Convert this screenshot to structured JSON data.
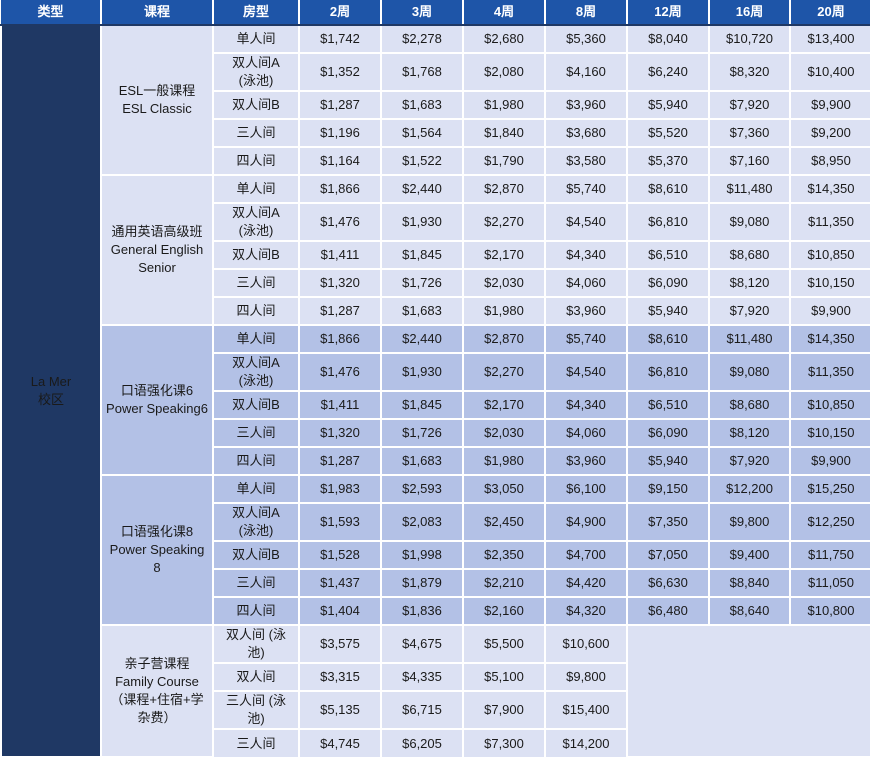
{
  "colors": {
    "header_bg": "#1e55a8",
    "header_text": "#ffffff",
    "header_divider": "#1f3864",
    "campus_bg": "#1f3864",
    "row_light": "#dce1f3",
    "row_dark": "#b3c1e6",
    "grid": "#ffffff",
    "cell_text": "#1a1a1a"
  },
  "table": {
    "headers": [
      "类型",
      "课程",
      "房型",
      "2周",
      "3周",
      "4周",
      "8周",
      "12周",
      "16周",
      "20周"
    ],
    "campus": "La Mer\n校区",
    "blocks": [
      {
        "course": "ESL一般课程\nESL Classic",
        "shade": "light",
        "rows": [
          {
            "room": "单人间",
            "prices": [
              "$1,742",
              "$2,278",
              "$2,680",
              "$5,360",
              "$8,040",
              "$10,720",
              "$13,400"
            ]
          },
          {
            "room": "双人间A\n(泳池)",
            "prices": [
              "$1,352",
              "$1,768",
              "$2,080",
              "$4,160",
              "$6,240",
              "$8,320",
              "$10,400"
            ]
          },
          {
            "room": "双人间B",
            "prices": [
              "$1,287",
              "$1,683",
              "$1,980",
              "$3,960",
              "$5,940",
              "$7,920",
              "$9,900"
            ]
          },
          {
            "room": "三人间",
            "prices": [
              "$1,196",
              "$1,564",
              "$1,840",
              "$3,680",
              "$5,520",
              "$7,360",
              "$9,200"
            ]
          },
          {
            "room": "四人间",
            "prices": [
              "$1,164",
              "$1,522",
              "$1,790",
              "$3,580",
              "$5,370",
              "$7,160",
              "$8,950"
            ]
          }
        ]
      },
      {
        "course": "通用英语高级班\nGeneral English\nSenior",
        "shade": "light",
        "rows": [
          {
            "room": "单人间",
            "prices": [
              "$1,866",
              "$2,440",
              "$2,870",
              "$5,740",
              "$8,610",
              "$11,480",
              "$14,350"
            ]
          },
          {
            "room": "双人间A\n(泳池)",
            "prices": [
              "$1,476",
              "$1,930",
              "$2,270",
              "$4,540",
              "$6,810",
              "$9,080",
              "$11,350"
            ]
          },
          {
            "room": "双人间B",
            "prices": [
              "$1,411",
              "$1,845",
              "$2,170",
              "$4,340",
              "$6,510",
              "$8,680",
              "$10,850"
            ]
          },
          {
            "room": "三人间",
            "prices": [
              "$1,320",
              "$1,726",
              "$2,030",
              "$4,060",
              "$6,090",
              "$8,120",
              "$10,150"
            ]
          },
          {
            "room": "四人间",
            "prices": [
              "$1,287",
              "$1,683",
              "$1,980",
              "$3,960",
              "$5,940",
              "$7,920",
              "$9,900"
            ]
          }
        ]
      },
      {
        "course": "口语强化课6\nPower Speaking6",
        "shade": "dark",
        "rows": [
          {
            "room": "单人间",
            "prices": [
              "$1,866",
              "$2,440",
              "$2,870",
              "$5,740",
              "$8,610",
              "$11,480",
              "$14,350"
            ]
          },
          {
            "room": "双人间A\n(泳池)",
            "prices": [
              "$1,476",
              "$1,930",
              "$2,270",
              "$4,540",
              "$6,810",
              "$9,080",
              "$11,350"
            ]
          },
          {
            "room": "双人间B",
            "prices": [
              "$1,411",
              "$1,845",
              "$2,170",
              "$4,340",
              "$6,510",
              "$8,680",
              "$10,850"
            ]
          },
          {
            "room": "三人间",
            "prices": [
              "$1,320",
              "$1,726",
              "$2,030",
              "$4,060",
              "$6,090",
              "$8,120",
              "$10,150"
            ]
          },
          {
            "room": "四人间",
            "prices": [
              "$1,287",
              "$1,683",
              "$1,980",
              "$3,960",
              "$5,940",
              "$7,920",
              "$9,900"
            ]
          }
        ]
      },
      {
        "course": "口语强化课8\nPower Speaking 8",
        "shade": "dark",
        "rows": [
          {
            "room": "单人间",
            "prices": [
              "$1,983",
              "$2,593",
              "$3,050",
              "$6,100",
              "$9,150",
              "$12,200",
              "$15,250"
            ]
          },
          {
            "room": "双人间A\n(泳池)",
            "prices": [
              "$1,593",
              "$2,083",
              "$2,450",
              "$4,900",
              "$7,350",
              "$9,800",
              "$12,250"
            ]
          },
          {
            "room": "双人间B",
            "prices": [
              "$1,528",
              "$1,998",
              "$2,350",
              "$4,700",
              "$7,050",
              "$9,400",
              "$11,750"
            ]
          },
          {
            "room": "三人间",
            "prices": [
              "$1,437",
              "$1,879",
              "$2,210",
              "$4,420",
              "$6,630",
              "$8,840",
              "$11,050"
            ]
          },
          {
            "room": "四人间",
            "prices": [
              "$1,404",
              "$1,836",
              "$2,160",
              "$4,320",
              "$6,480",
              "$8,640",
              "$10,800"
            ]
          }
        ]
      },
      {
        "course": "亲子营课程Family Course（课程+住宿+学杂费）",
        "shade": "light",
        "has_empty_region": true,
        "rows": [
          {
            "room": "双人间 (泳池)",
            "prices": [
              "$3,575",
              "$4,675",
              "$5,500",
              "$10,600"
            ]
          },
          {
            "room": "双人间",
            "prices": [
              "$3,315",
              "$4,335",
              "$5,100",
              "$9,800"
            ]
          },
          {
            "room": "三人间 (泳池)",
            "prices": [
              "$5,135",
              "$6,715",
              "$7,900",
              "$15,400"
            ]
          },
          {
            "room": "三人间",
            "prices": [
              "$4,745",
              "$6,205",
              "$7,300",
              "$14,200"
            ]
          }
        ]
      }
    ]
  }
}
